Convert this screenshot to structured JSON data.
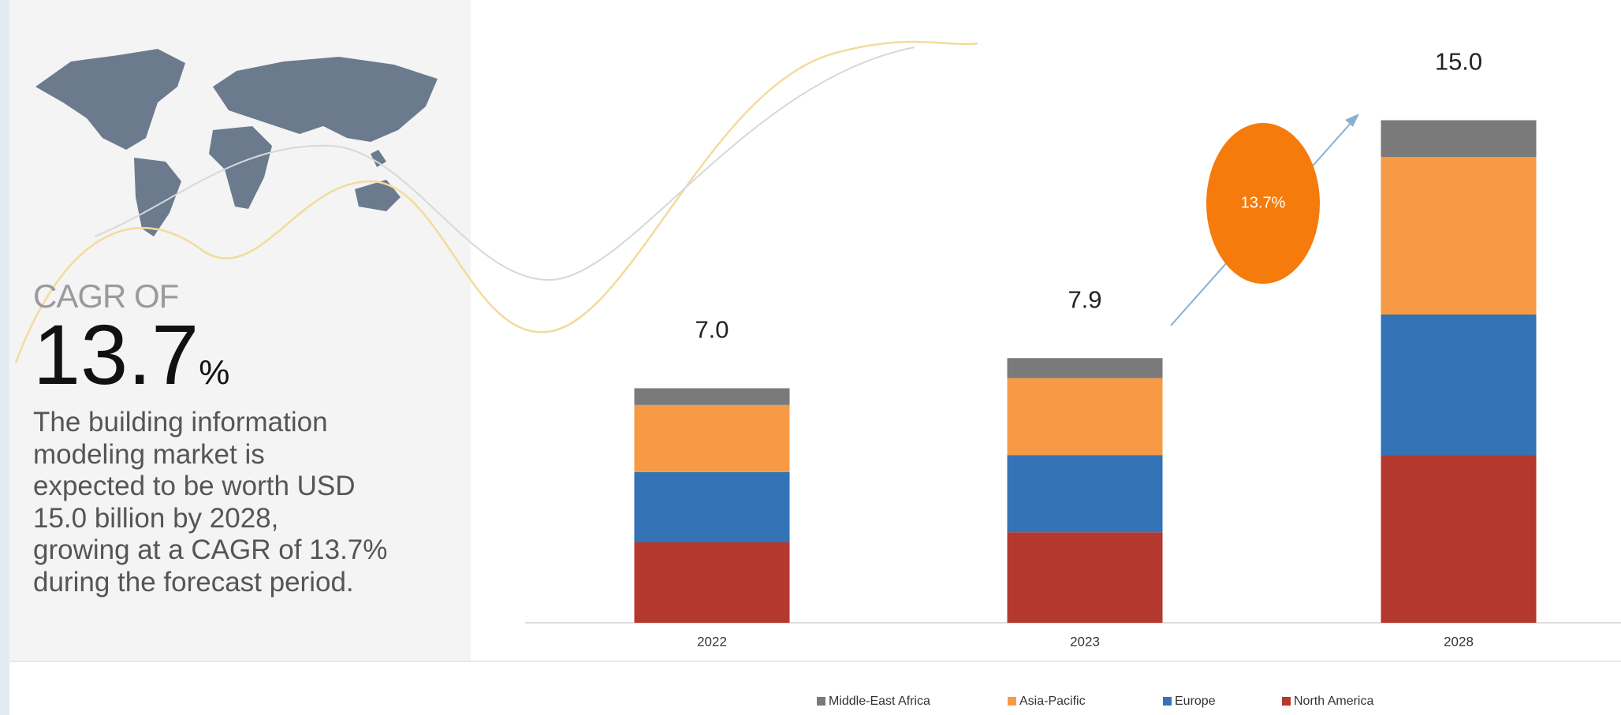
{
  "panel": {
    "cagr_heading": "CAGR OF",
    "cagr_value": "13.7",
    "cagr_unit": "%",
    "description_lines": [
      "The building information",
      "modeling  market is",
      "expected to be worth USD",
      "15.0 billion by 2028,",
      "growing at a CAGR of 13.7%",
      "during the forecast period."
    ]
  },
  "chart_data": {
    "type": "bar",
    "stacked": true,
    "categories": [
      "2022",
      "2023",
      "2028"
    ],
    "series": [
      {
        "name": "North America",
        "color": "#b5382f",
        "values": [
          2.4,
          2.7,
          5.0
        ]
      },
      {
        "name": "Europe",
        "color": "#3473b5",
        "values": [
          2.1,
          2.3,
          4.2
        ]
      },
      {
        "name": "Asia-Pacific",
        "color": "#f79a45",
        "values": [
          2.0,
          2.3,
          4.7
        ]
      },
      {
        "name": "Middle-East Africa",
        "color": "#7a7a7a",
        "values": [
          0.5,
          0.6,
          1.1
        ]
      }
    ],
    "totals": [
      7.0,
      7.9,
      15.0
    ],
    "total_labels": [
      "7.0",
      "7.9",
      "15.0"
    ],
    "annotation": "13.7%"
  }
}
